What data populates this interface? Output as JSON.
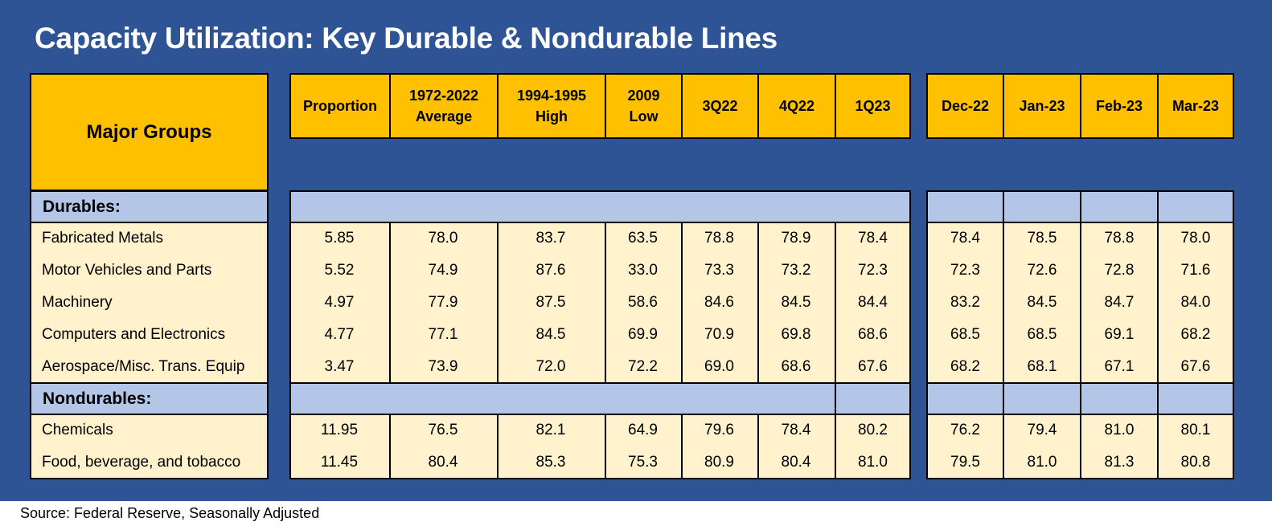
{
  "title": "Capacity Utilization: Key Durable & Nondurable Lines",
  "source": "Source: Federal Reserve, Seasonally Adjusted",
  "table": {
    "major_header": "Major Groups",
    "columns": [
      [
        "Proportion"
      ],
      [
        "1972-2022",
        "Average"
      ],
      [
        "1994-1995",
        "High"
      ],
      [
        "2009",
        "Low"
      ],
      [
        "3Q22"
      ],
      [
        "4Q22"
      ],
      [
        "1Q23"
      ],
      [
        "Dec-22"
      ],
      [
        "Jan-23"
      ],
      [
        "Feb-23"
      ],
      [
        "Mar-23"
      ]
    ],
    "sections": [
      {
        "label": "Durables:",
        "rows": [
          {
            "name": "Fabricated Metals",
            "values": [
              "5.85",
              "78.0",
              "83.7",
              "63.5",
              "78.8",
              "78.9",
              "78.4",
              "78.4",
              "78.5",
              "78.8",
              "78.0"
            ]
          },
          {
            "name": "Motor Vehicles and Parts",
            "values": [
              "5.52",
              "74.9",
              "87.6",
              "33.0",
              "73.3",
              "73.2",
              "72.3",
              "72.3",
              "72.6",
              "72.8",
              "71.6"
            ]
          },
          {
            "name": "Machinery",
            "values": [
              "4.97",
              "77.9",
              "87.5",
              "58.6",
              "84.6",
              "84.5",
              "84.4",
              "83.2",
              "84.5",
              "84.7",
              "84.0"
            ]
          },
          {
            "name": "Computers and Electronics",
            "values": [
              "4.77",
              "77.1",
              "84.5",
              "69.9",
              "70.9",
              "69.8",
              "68.6",
              "68.5",
              "68.5",
              "69.1",
              "68.2"
            ]
          },
          {
            "name": "Aerospace/Misc. Trans. Equip",
            "values": [
              "3.47",
              "73.9",
              "72.0",
              "72.2",
              "69.0",
              "68.6",
              "67.6",
              "68.2",
              "68.1",
              "67.1",
              "67.6"
            ]
          }
        ]
      },
      {
        "label": "Nondurables:",
        "rows": [
          {
            "name": "Chemicals",
            "values": [
              "11.95",
              "76.5",
              "82.1",
              "64.9",
              "79.6",
              "78.4",
              "80.2",
              "76.2",
              "79.4",
              "81.0",
              "80.1"
            ]
          },
          {
            "name": "Food, beverage, and tobacco",
            "values": [
              "11.45",
              "80.4",
              "85.3",
              "75.3",
              "80.9",
              "80.4",
              "81.0",
              "79.5",
              "81.0",
              "81.3",
              "80.8"
            ]
          }
        ]
      }
    ]
  }
}
